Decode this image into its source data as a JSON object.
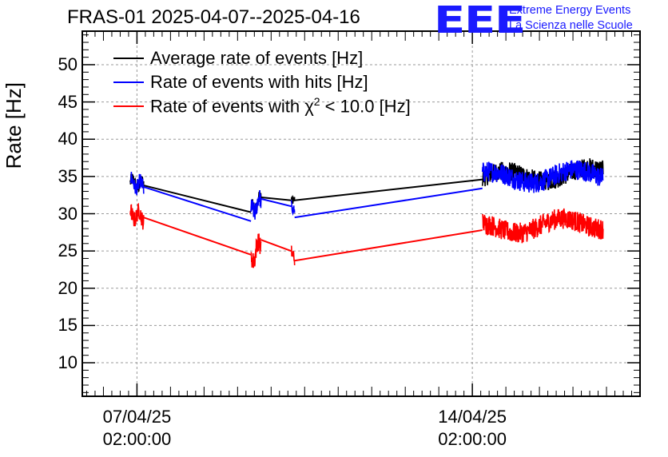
{
  "chart_data": {
    "type": "line",
    "title": "FRAS-01 2025-04-07--2025-04-16",
    "ylabel": "Rate [Hz]",
    "xlabel": "",
    "ylim": [
      5.5,
      54.5
    ],
    "yticks": [
      "10",
      "15",
      "20",
      "25",
      "30",
      "35",
      "40",
      "45",
      "50"
    ],
    "x_unit": "days since 07/04/25 02:00:00",
    "xlim": [
      -1.63,
      15.0
    ],
    "xticks": [
      {
        "x": 0,
        "date": "07/04/25",
        "time": "02:00:00"
      },
      {
        "x": 10,
        "date": "14/04/25",
        "time": "02:00:00"
      }
    ],
    "grid": true,
    "legend_position": "top-left",
    "series": [
      {
        "name": "Average rate of events [Hz]",
        "color": "#000000",
        "segments": [
          {
            "x": [
              -0.2,
              0.2
            ],
            "y": [
              34.2,
              33.8
            ],
            "noise": 0.9
          },
          {
            "x": [
              3.4,
              3.7
            ],
            "y": [
              30.5,
              32.2
            ],
            "noise": 0.8
          },
          {
            "x": [
              4.6,
              4.7
            ],
            "y": [
              31.8,
              31.8
            ],
            "noise": 0.4
          },
          {
            "x": [
              10.3,
              13.9
            ],
            "y": [
              34.8,
              35.5
            ],
            "noise": 1.3
          }
        ],
        "gaps": [
          {
            "x": [
              0.2,
              3.4
            ],
            "y": [
              33.8,
              30.2
            ]
          },
          {
            "x": [
              3.7,
              4.6
            ],
            "y": [
              32.2,
              31.8
            ]
          },
          {
            "x": [
              4.7,
              10.3
            ],
            "y": [
              31.8,
              34.6
            ]
          }
        ]
      },
      {
        "name": "Rate of events with hits [Hz]",
        "color": "#0000ff",
        "segments": [
          {
            "x": [
              -0.2,
              0.2
            ],
            "y": [
              34.3,
              33.6
            ],
            "noise": 1.0
          },
          {
            "x": [
              3.4,
              3.7
            ],
            "y": [
              30.0,
              32.0
            ],
            "noise": 1.2
          },
          {
            "x": [
              4.6,
              4.7
            ],
            "y": [
              31.0,
              30.0
            ],
            "noise": 0.6
          },
          {
            "x": [
              10.3,
              13.9
            ],
            "y": [
              34.8,
              35.2
            ],
            "noise": 1.4
          }
        ],
        "gaps": [
          {
            "x": [
              0.2,
              3.4
            ],
            "y": [
              33.6,
              29.0
            ]
          },
          {
            "x": [
              3.7,
              4.6
            ],
            "y": [
              32.0,
              31.0
            ]
          },
          {
            "x": [
              4.7,
              10.3
            ],
            "y": [
              29.5,
              33.4
            ]
          }
        ]
      },
      {
        "name": "Rate of events with χ² < 10.0 [Hz]",
        "color": "#ff0000",
        "segments": [
          {
            "x": [
              -0.2,
              0.2
            ],
            "y": [
              30.0,
              29.5
            ],
            "noise": 1.1
          },
          {
            "x": [
              3.4,
              3.7
            ],
            "y": [
              23.5,
              26.5
            ],
            "noise": 1.3
          },
          {
            "x": [
              4.6,
              4.7
            ],
            "y": [
              25.0,
              24.0
            ],
            "noise": 0.6
          },
          {
            "x": [
              10.3,
              13.9
            ],
            "y": [
              28.0,
              28.8
            ],
            "noise": 1.4
          }
        ],
        "gaps": [
          {
            "x": [
              0.2,
              3.4
            ],
            "y": [
              29.5,
              24.5
            ]
          },
          {
            "x": [
              3.7,
              4.6
            ],
            "y": [
              26.5,
              25.0
            ]
          },
          {
            "x": [
              4.7,
              10.3
            ],
            "y": [
              23.7,
              27.8
            ]
          }
        ]
      }
    ]
  },
  "legend": [
    {
      "label": "Average rate of events [Hz]",
      "color": "#000000"
    },
    {
      "label": "Rate of events with hits [Hz]",
      "color": "#0000ff"
    },
    {
      "label_prefix": "Rate of events with χ",
      "label_sup": "2",
      "label_suffix": " < 10.0 [Hz]",
      "color": "#ff0000"
    }
  ],
  "logo": {
    "mark": "EEE",
    "line1": "Extreme Energy Events",
    "line2": "La Scienza nelle Scuole"
  }
}
